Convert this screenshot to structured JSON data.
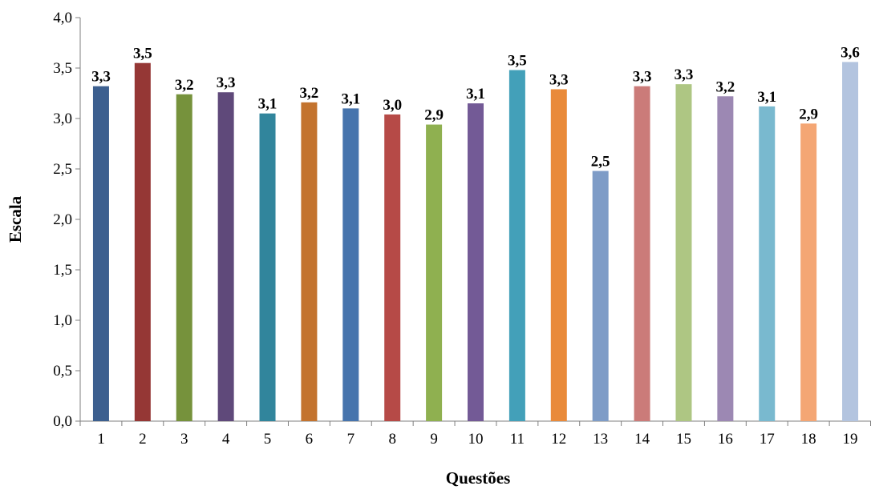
{
  "chart_data": {
    "type": "bar",
    "title": "",
    "xlabel": "Questões",
    "ylabel": "Escala",
    "ylim": [
      0,
      4
    ],
    "y_ticks": [
      "0,0",
      "0,5",
      "1,0",
      "1,5",
      "2,0",
      "2,5",
      "3,0",
      "3,5",
      "4,0"
    ],
    "grid": false,
    "legend": "none",
    "categories": [
      "1",
      "2",
      "3",
      "4",
      "5",
      "6",
      "7",
      "8",
      "9",
      "10",
      "11",
      "12",
      "13",
      "14",
      "15",
      "16",
      "17",
      "18",
      "19"
    ],
    "values": [
      3.32,
      3.55,
      3.24,
      3.26,
      3.05,
      3.16,
      3.1,
      3.04,
      2.94,
      3.15,
      3.48,
      3.29,
      2.48,
      3.32,
      3.34,
      3.22,
      3.12,
      2.95,
      3.56
    ],
    "data_labels": [
      "3,3",
      "3,5",
      "3,2",
      "3,3",
      "3,1",
      "3,2",
      "3,1",
      "3,0",
      "2,9",
      "3,1",
      "3,5",
      "3,3",
      "2,5",
      "3,3",
      "3,3",
      "3,2",
      "3,1",
      "2,9",
      "3,6"
    ],
    "colors": [
      "#3c5f8f",
      "#953735",
      "#76923c",
      "#5f497a",
      "#31859c",
      "#c3732e",
      "#4674ad",
      "#b64a47",
      "#8fb050",
      "#735a96",
      "#43a0b9",
      "#e98a3a",
      "#7e9cc7",
      "#cb7b79",
      "#aec683",
      "#9c88b3",
      "#79b9cf",
      "#f4a674",
      "#b3c4df"
    ]
  }
}
